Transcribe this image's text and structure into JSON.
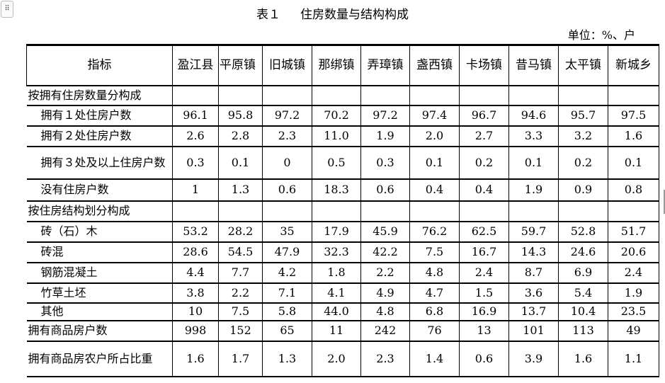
{
  "document": {
    "title_number": "表１",
    "title": "住房数量与结构构成",
    "unit": "单位：%、户",
    "handle_icon": "drag-handle-icon"
  },
  "table": {
    "header_label": "指标",
    "columns": [
      "盈江县",
      "平原镇",
      "旧城镇",
      "那绑镇",
      "弄璋镇",
      "盏西镇",
      "卡场镇",
      "昔马镇",
      "太平镇",
      "新城乡"
    ],
    "rows": [
      {
        "label": "按拥有住房数量分构成",
        "indent": false,
        "values": [
          "",
          "",
          "",
          "",
          "",
          "",
          "",
          "",
          "",
          ""
        ]
      },
      {
        "label": "拥有１处住房户数",
        "indent": true,
        "values": [
          "96.1",
          "95.8",
          "97.2",
          "70.2",
          "97.2",
          "97.4",
          "96.7",
          "94.6",
          "95.7",
          "97.5"
        ]
      },
      {
        "label": "拥有２处住房户数",
        "indent": true,
        "values": [
          "2.6",
          "2.8",
          "2.3",
          "11.0",
          "1.9",
          "2.0",
          "2.7",
          "3.3",
          "3.2",
          "1.6"
        ]
      },
      {
        "label": "拥有３处及以上住房户数",
        "indent": true,
        "values": [
          "0.3",
          "0.1",
          "0",
          "0.5",
          "0.3",
          "0.1",
          "0.2",
          "0.1",
          "0.2",
          "0.1"
        ]
      },
      {
        "label": "没有住房户数",
        "indent": true,
        "values": [
          "1",
          "1.3",
          "0.6",
          "18.3",
          "0.6",
          "0.4",
          "0.4",
          "1.9",
          "0.9",
          "0.8"
        ]
      },
      {
        "label": "按住房结构划分构成",
        "indent": false,
        "values": [
          "",
          "",
          "",
          "",
          "",
          "",
          "",
          "",
          "",
          ""
        ]
      },
      {
        "label": "砖（石）木",
        "indent": true,
        "values": [
          "53.2",
          "28.2",
          "35",
          "17.9",
          "45.9",
          "76.2",
          "62.5",
          "59.7",
          "52.8",
          "51.7"
        ]
      },
      {
        "label": "砖混",
        "indent": true,
        "values": [
          "28.6",
          "54.5",
          "47.9",
          "32.3",
          "42.2",
          "7.5",
          "16.7",
          "14.3",
          "24.6",
          "20.6"
        ]
      },
      {
        "label": "钢筋混凝土",
        "indent": true,
        "values": [
          "4.4",
          "7.7",
          "4.2",
          "1.8",
          "2.2",
          "4.8",
          "2.4",
          "8.7",
          "6.9",
          "2.4"
        ]
      },
      {
        "label": "竹草土坯",
        "indent": true,
        "values": [
          "3.8",
          "2.2",
          "7.1",
          "4.1",
          "4.9",
          "4.7",
          "1.5",
          "3.6",
          "5.4",
          "1.9"
        ]
      },
      {
        "label": "其他",
        "indent": true,
        "values": [
          "10",
          "7.5",
          "5.8",
          "44.0",
          "4.8",
          "6.8",
          "16.9",
          "13.7",
          "10.4",
          "23.5"
        ]
      },
      {
        "label": "拥有商品房户数",
        "indent": false,
        "values": [
          "998",
          "152",
          "65",
          "11",
          "242",
          "76",
          "13",
          "101",
          "113",
          "49"
        ]
      },
      {
        "label": "拥有商品房农户所占比重",
        "indent": false,
        "values": [
          "1.6",
          "1.7",
          "1.3",
          "2.0",
          "2.3",
          "1.4",
          "0.6",
          "3.9",
          "1.6",
          "1.1"
        ]
      }
    ]
  }
}
